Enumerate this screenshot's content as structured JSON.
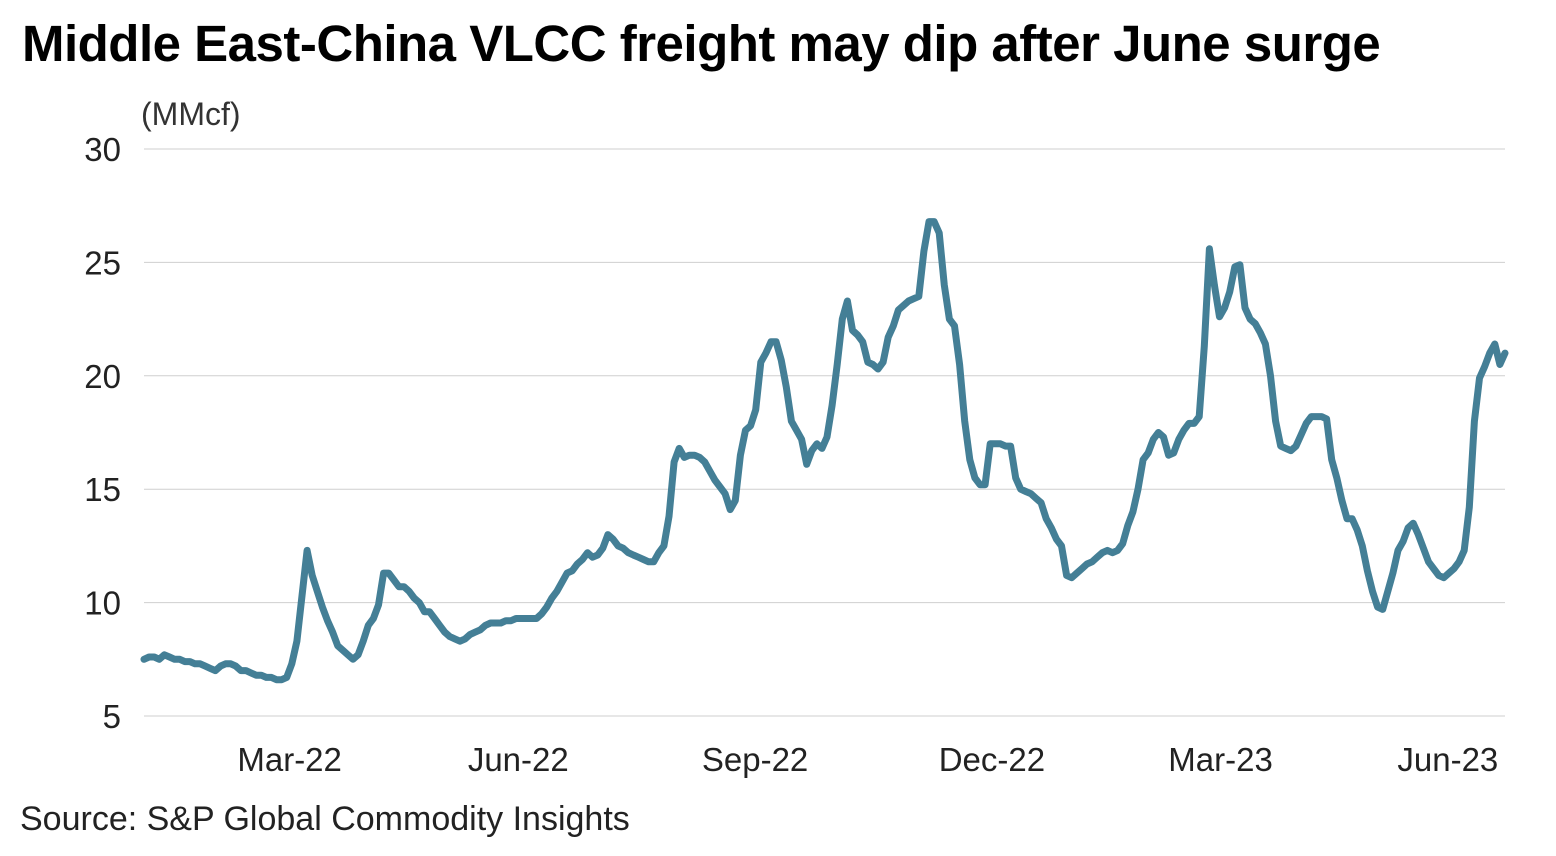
{
  "chart_data": {
    "type": "line",
    "title": "Middle East-China VLCC freight may dip after June surge",
    "ylabel": "(MMcf)",
    "xlabel": "",
    "source": "Source: S&P Global Commodity Insights",
    "ylim": [
      5,
      30
    ],
    "yticks": [
      30,
      25,
      20,
      15,
      10,
      5
    ],
    "xticks": [
      {
        "label": "Mar-22",
        "t": 0.107
      },
      {
        "label": "Jun-22",
        "t": 0.275
      },
      {
        "label": "Sep-22",
        "t": 0.449
      },
      {
        "label": "Dec-22",
        "t": 0.623
      },
      {
        "label": "Mar-23",
        "t": 0.791
      },
      {
        "label": "Jun-23",
        "t": 0.958
      }
    ],
    "grid": true,
    "line_color": "#447f96",
    "series": [
      {
        "name": "VLCC freight",
        "values": [
          7.5,
          7.6,
          7.6,
          7.5,
          7.7,
          7.6,
          7.5,
          7.5,
          7.4,
          7.4,
          7.3,
          7.3,
          7.2,
          7.1,
          7.0,
          7.2,
          7.3,
          7.3,
          7.2,
          7.0,
          7.0,
          6.9,
          6.8,
          6.8,
          6.7,
          6.7,
          6.6,
          6.6,
          6.7,
          7.3,
          8.3,
          10.3,
          12.3,
          11.2,
          10.5,
          9.8,
          9.2,
          8.7,
          8.1,
          7.9,
          7.7,
          7.5,
          7.7,
          8.3,
          9.0,
          9.3,
          9.9,
          11.3,
          11.3,
          11.0,
          10.7,
          10.7,
          10.5,
          10.2,
          10.0,
          9.6,
          9.6,
          9.3,
          9.0,
          8.7,
          8.5,
          8.4,
          8.3,
          8.4,
          8.6,
          8.7,
          8.8,
          9.0,
          9.1,
          9.1,
          9.1,
          9.2,
          9.2,
          9.3,
          9.3,
          9.3,
          9.3,
          9.3,
          9.5,
          9.8,
          10.2,
          10.5,
          10.9,
          11.3,
          11.4,
          11.7,
          11.9,
          12.2,
          12.0,
          12.1,
          12.4,
          13.0,
          12.8,
          12.5,
          12.4,
          12.2,
          12.1,
          12.0,
          11.9,
          11.8,
          11.8,
          12.2,
          12.5,
          13.8,
          16.2,
          16.8,
          16.4,
          16.5,
          16.5,
          16.4,
          16.2,
          15.8,
          15.4,
          15.1,
          14.8,
          14.1,
          14.5,
          16.5,
          17.6,
          17.8,
          18.5,
          20.6,
          21.0,
          21.5,
          21.5,
          20.7,
          19.5,
          18.0,
          17.6,
          17.2,
          16.1,
          16.7,
          17.0,
          16.8,
          17.3,
          18.7,
          20.5,
          22.5,
          23.3,
          22.0,
          21.8,
          21.5,
          20.6,
          20.5,
          20.3,
          20.6,
          21.7,
          22.2,
          22.9,
          23.1,
          23.3,
          23.4,
          23.5,
          25.5,
          26.8,
          26.8,
          26.3,
          24.0,
          22.5,
          22.2,
          20.5,
          18.0,
          16.3,
          15.5,
          15.2,
          15.2,
          17.0,
          17.0,
          17.0,
          16.9,
          16.9,
          15.5,
          15.0,
          14.9,
          14.8,
          14.6,
          14.4,
          13.7,
          13.3,
          12.8,
          12.5,
          11.2,
          11.1,
          11.3,
          11.5,
          11.7,
          11.8,
          12.0,
          12.2,
          12.3,
          12.2,
          12.3,
          12.6,
          13.4,
          14.0,
          15.0,
          16.3,
          16.6,
          17.2,
          17.5,
          17.3,
          16.5,
          16.6,
          17.2,
          17.6,
          17.9,
          17.9,
          18.2,
          21.3,
          25.6,
          24.0,
          22.6,
          23.0,
          23.7,
          24.8,
          24.9,
          23.0,
          22.5,
          22.3,
          21.9,
          21.4,
          20.0,
          18.0,
          16.9,
          16.8,
          16.7,
          16.9,
          17.4,
          17.9,
          18.2,
          18.2,
          18.2,
          18.1,
          16.3,
          15.5,
          14.5,
          13.7,
          13.7,
          13.2,
          12.5,
          11.4,
          10.5,
          9.8,
          9.7,
          10.5,
          11.3,
          12.3,
          12.7,
          13.3,
          13.5,
          13.0,
          12.4,
          11.8,
          11.5,
          11.2,
          11.1,
          11.3,
          11.5,
          11.8,
          12.3,
          14.2,
          18.0,
          19.9,
          20.4,
          21.0,
          21.4,
          20.5,
          21.0
        ]
      }
    ]
  }
}
